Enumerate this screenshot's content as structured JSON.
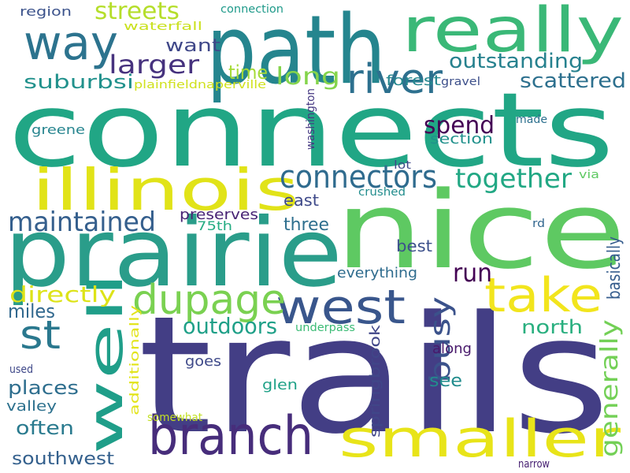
{
  "words": [
    {
      "text": "connects",
      "color": "#21a685"
    },
    {
      "text": "trails",
      "color": "#433e85"
    },
    {
      "text": "nice",
      "color": "#5ec962"
    },
    {
      "text": "path",
      "color": "#25858e"
    },
    {
      "text": "prairie",
      "color": "#2a9d8a"
    },
    {
      "text": "really",
      "color": "#3ab877"
    },
    {
      "text": "illinois",
      "color": "#e1e318"
    },
    {
      "text": "smaller",
      "color": "#e8e419"
    },
    {
      "text": "branch",
      "color": "#472d7b"
    },
    {
      "text": "well",
      "color": "#1f9e89"
    },
    {
      "text": "west",
      "color": "#39568c"
    },
    {
      "text": "way",
      "color": "#2c738e"
    },
    {
      "text": "take",
      "color": "#f2e51d"
    },
    {
      "text": "dupage",
      "color": "#7ad151"
    },
    {
      "text": "river",
      "color": "#2d708e"
    },
    {
      "text": "st",
      "color": "#2a788e"
    },
    {
      "text": "connectors",
      "color": "#2f6b8e"
    },
    {
      "text": "together",
      "color": "#22a884"
    },
    {
      "text": "streets",
      "color": "#b5de2b"
    },
    {
      "text": "larger",
      "color": "#46327e"
    },
    {
      "text": "maintained",
      "color": "#355f8d"
    },
    {
      "text": "long",
      "color": "#84d44b"
    },
    {
      "text": "time",
      "color": "#a5db36"
    },
    {
      "text": "outstanding",
      "color": "#26818e"
    },
    {
      "text": "scattered",
      "color": "#2d708e"
    },
    {
      "text": "suburbsi",
      "color": "#21918c"
    },
    {
      "text": "want",
      "color": "#3f4788"
    },
    {
      "text": "run",
      "color": "#440154"
    },
    {
      "text": "busy",
      "color": "#3b528b"
    },
    {
      "text": "basically",
      "color": "#365d8d"
    },
    {
      "text": "generally",
      "color": "#73d056"
    },
    {
      "text": "spend",
      "color": "#440154"
    },
    {
      "text": "outdoors",
      "color": "#1fa088"
    },
    {
      "text": "north",
      "color": "#29af7f"
    },
    {
      "text": "directly",
      "color": "#dde318"
    },
    {
      "text": "miles",
      "color": "#31688e"
    },
    {
      "text": "places",
      "color": "#2e6e8e"
    },
    {
      "text": "often",
      "color": "#297a8e"
    },
    {
      "text": "southwest",
      "color": "#34608d"
    },
    {
      "text": "see",
      "color": "#228c8d"
    },
    {
      "text": "three",
      "color": "#2e6f8e"
    },
    {
      "text": "east",
      "color": "#3e4989"
    },
    {
      "text": "best",
      "color": "#3c508b"
    },
    {
      "text": "everything",
      "color": "#2f6c8e"
    },
    {
      "text": "preserves",
      "color": "#482475"
    },
    {
      "text": "75th",
      "color": "#25ac82"
    },
    {
      "text": "section",
      "color": "#21918c"
    },
    {
      "text": "forest",
      "color": "#24868e"
    },
    {
      "text": "along",
      "color": "#48196b"
    },
    {
      "text": "valley",
      "color": "#2d718e"
    },
    {
      "text": "goes",
      "color": "#3e4989"
    },
    {
      "text": "glen",
      "color": "#1fa187"
    },
    {
      "text": "region",
      "color": "#3b528b"
    },
    {
      "text": "waterfall",
      "color": "#cae11f"
    },
    {
      "text": "connection",
      "color": "#1f9a8a"
    },
    {
      "text": "greene",
      "color": "#25848e"
    },
    {
      "text": "made",
      "color": "#2d708e"
    },
    {
      "text": "lot",
      "color": "#3e4989"
    },
    {
      "text": "via",
      "color": "#5ec962"
    },
    {
      "text": "rd",
      "color": "#31668e"
    },
    {
      "text": "crushed",
      "color": "#228d8d"
    },
    {
      "text": "gravel",
      "color": "#3c4f8a"
    },
    {
      "text": "somewhat",
      "color": "#c2df23"
    },
    {
      "text": "underpass",
      "color": "#3bbb75"
    },
    {
      "text": "used",
      "color": "#3f4889"
    },
    {
      "text": "narrow",
      "color": "#482173"
    },
    {
      "text": "plainfieldnaperville",
      "color": "#d0e11c"
    },
    {
      "text": "washington",
      "color": "#453882"
    },
    {
      "text": "springbrook",
      "color": "#404688"
    },
    {
      "text": "additionally",
      "color": "#e2e418"
    }
  ]
}
